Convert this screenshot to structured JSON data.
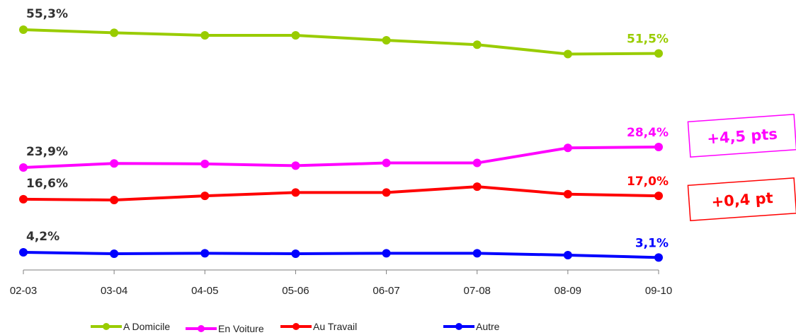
{
  "chart_data": {
    "type": "line",
    "categories": [
      "02-03",
      "03-04",
      "04-05",
      "05-06",
      "06-07",
      "07-08",
      "08-09",
      "09-10"
    ],
    "series": [
      {
        "name": "A Domicile",
        "color": "#99cc00",
        "values": [
          55.3,
          54.8,
          54.4,
          54.4,
          53.6,
          52.9,
          51.4,
          51.5
        ],
        "labels": {
          "first": "55,3%",
          "last": "51,5%"
        },
        "first_label_color": "#333333"
      },
      {
        "name": "En Voiture",
        "color": "#ff00ff",
        "values": [
          23.9,
          24.8,
          24.7,
          24.3,
          24.9,
          24.9,
          28.2,
          28.4
        ],
        "labels": {
          "first": "23,9%",
          "last": "28,4%"
        },
        "first_label_color": "#333333"
      },
      {
        "name": "Au Travail",
        "color": "#ff0000",
        "values": [
          16.6,
          16.5,
          17.0,
          17.4,
          17.4,
          18.1,
          17.2,
          17.0
        ],
        "labels": {
          "first": "16,6%",
          "last": "17,0%"
        },
        "first_label_color": "#333333"
      },
      {
        "name": "Autre",
        "color": "#0000ff",
        "values": [
          4.2,
          3.9,
          4.0,
          3.9,
          4.0,
          4.0,
          3.6,
          3.1
        ],
        "labels": {
          "first": "4,2%",
          "last": "3,1%"
        },
        "first_label_color": "#333333"
      }
    ],
    "grid": false,
    "legend": "bottom",
    "annotations": [
      {
        "text": "+4,5 pts",
        "color": "#ff00ff",
        "series": "En Voiture"
      },
      {
        "text": "+0,4 pt",
        "color": "#ff0000",
        "series": "Au Travail"
      }
    ]
  }
}
